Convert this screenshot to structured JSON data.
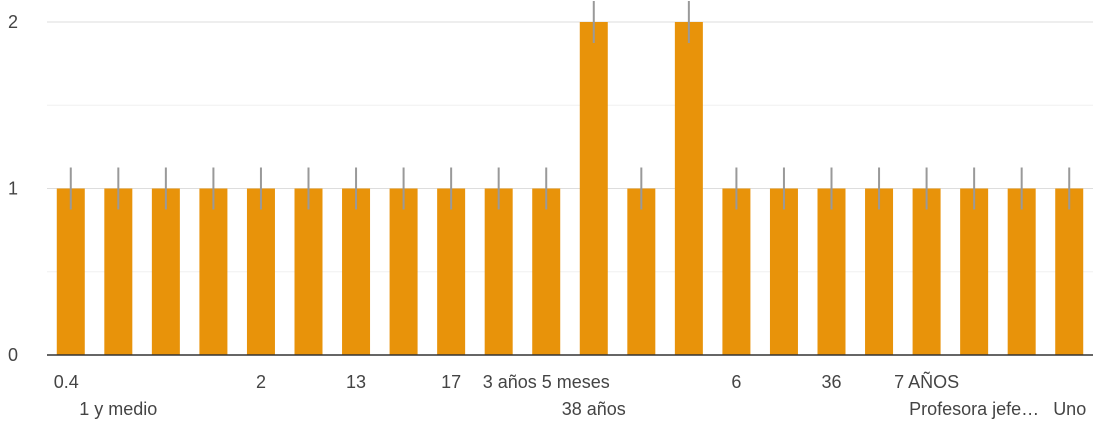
{
  "chart_data": {
    "type": "bar",
    "categories": [
      "0.4",
      "1 y medio",
      "",
      "",
      "2",
      "",
      "13",
      "",
      "17",
      "",
      "3 años 5 meses",
      "38 años",
      "",
      "",
      "6",
      "",
      "36",
      "",
      "7 AÑOS",
      "Profesora jefe…",
      "",
      "Uno"
    ],
    "values": [
      1,
      1,
      1,
      1,
      1,
      1,
      1,
      1,
      1,
      1,
      1,
      2,
      1,
      2,
      1,
      1,
      1,
      1,
      1,
      1,
      1,
      1
    ],
    "ylim": [
      0,
      2
    ],
    "yticks": [
      0,
      1,
      2
    ],
    "grid": true,
    "bar_color": "#E8930A",
    "grid_color": "#e6e6e6",
    "axis_color": "#333333",
    "error_bar_color": "#999999"
  }
}
